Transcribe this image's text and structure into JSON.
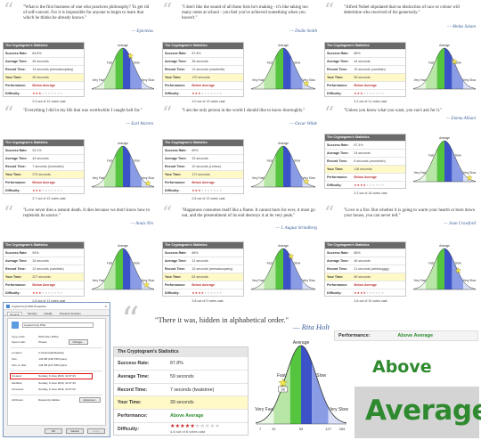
{
  "stats_header": "The Cryptogram's Statistics",
  "labels": {
    "success": "Success Rate:",
    "avg": "Average Time:",
    "record": "Record Time:",
    "your": "Your Time:",
    "perf": "Performance:",
    "diff": "Difficulty:"
  },
  "curve_labels": {
    "average": "Average",
    "fast": "Fast",
    "slow": "Slow",
    "very_fast": "Very Fast",
    "very_slow": "Very Slow"
  },
  "cards": [
    {
      "quote": "\"What is the first business of one who practices philosophy? To get rid of self-conceit. For it is impossible for anyone to begin to learn that which he thinks he already knows.\"",
      "author": "— Epictetus",
      "success": "84.8%",
      "avg": "45 seconds",
      "record": "13 seconds (beesaboopsley)",
      "your": "30 seconds",
      "perf": "Below Average",
      "rating": "2.9 out of 12 votes cast"
    },
    {
      "quote": "\"I don't like the sound of all those lists he's making - it's like taking too many notes at school - you feel you've achieved something when you haven't.\"",
      "author": "— Dodie Smith",
      "success": "87.8%",
      "avg": "36 seconds",
      "record": "13 seconds (manfredb)",
      "your": "170 seconds",
      "perf": "Below Average",
      "rating": "3.0 out of 13 votes cast"
    },
    {
      "quote": "\"Alfred Nobel stipulated that no distinction of race or colour will determine who received of his generosity.\"",
      "author": "— Abdus Salam",
      "success": "88%",
      "avg": "44 seconds",
      "record": "15 seconds (camtrish)",
      "your": "55 seconds",
      "perf": "Below Average",
      "rating": "3.3 out of 11 votes cast"
    },
    {
      "quote": "\"Everything I did in my life that was worthwhile I caught hell for.\"",
      "author": "— Earl Warren",
      "success": "93.1%",
      "avg": "44 seconds",
      "record": "7 seconds (monstrich)",
      "your": "279 seconds",
      "perf": "Below Average",
      "rating": "2.7 out of 12 votes cast"
    },
    {
      "quote": "\"I am the only person in the world I should like to know thoroughly.\"",
      "author": "— Oscar Wilde",
      "success": "89%",
      "avg": "33 seconds",
      "record": "10 seconds (Leitmo)",
      "your": "171 seconds",
      "perf": "Below Average",
      "rating": "2.8 out of 13 votes cast"
    },
    {
      "quote": "\"Unless you know what you want, you can't ask for it.\"",
      "author": "— Emma Albani",
      "success": "87.4%",
      "avg": "24 seconds",
      "record": "6 seconds (monstrich)",
      "your": "118 seconds",
      "perf": "Below Average",
      "rating": "4.3 out of 16 votes cast"
    },
    {
      "quote": "\"Love never dies a natural death. It dies because we don't know how to replenish its source.\"",
      "author": "— Anais Nin",
      "success": "94%",
      "avg": "34 seconds",
      "record": "12 seconds (camtrish)",
      "your": "227 seconds",
      "perf": "Below Average",
      "rating": "2.8 out of 11 votes cast"
    },
    {
      "quote": "\"Happiness consumes itself like a flame. It cannot burn for ever, it must go out, and the presentiment of its end destroys it at its very peak.\"",
      "author": "— J. August Strindberg",
      "success": "88%",
      "avg": "31 seconds",
      "record": "15 seconds (beesaboopsley)",
      "your": "63 seconds",
      "perf": "Below Average",
      "rating": "3.8 out of 9 votes cast"
    },
    {
      "quote": "\"Love is a fire. But whether it is going to warm your hearth or burn down your house, you can never tell.\"",
      "author": "— Joan Crawford",
      "success": "88%",
      "avg": "46 seconds",
      "record": "11 seconds (sebbdoggg)",
      "your": "89 seconds",
      "perf": "Below Average",
      "rating": "3.8 out of 10 votes cast"
    }
  ],
  "dialog": {
    "title": "cryptocrrn(1).PNG Properties",
    "tabs": [
      "General",
      "Security",
      "Details",
      "Previous Versions"
    ],
    "filename": "cryptocrrn(1).PNG",
    "change": "Change...",
    "advanced": "Advanced...",
    "rows": [
      {
        "k": "Type of file:",
        "v": "PNG File (.PNG)"
      },
      {
        "k": "Opens with:",
        "v": "Photos"
      },
      {
        "k": "Location:",
        "v": "C:\\Users\\rgh\\Desktop"
      },
      {
        "k": "Size:",
        "v": "142 KB (145,766 bytes)"
      },
      {
        "k": "Size on disk:",
        "v": "144 KB (147,456 bytes)"
      },
      {
        "k": "Created:",
        "v": "Sunday, 9 June 2019, 14:37:23"
      },
      {
        "k": "Modified:",
        "v": "Sunday, 9 June 2019, 14:37:23"
      },
      {
        "k": "Accessed:",
        "v": "Sunday, 9 June 2019, 14:37:23"
      },
      {
        "k": "Attributes:",
        "v": "Read-only  Hidden"
      }
    ],
    "ok": "OK",
    "cancel": "Cancel",
    "apply": "Apply"
  },
  "main": {
    "quote": "\"There it was, hidden in alphabetical order.\"",
    "author": "— Rita Holt",
    "success": "87.8%",
    "avg": "59 seconds",
    "record": "7 seconds (twalstree)",
    "your": "39 seconds",
    "perf": "Above Average",
    "rating": "4.8 out of 8 votes cast",
    "ticks": [
      "7",
      "31",
      "59",
      "127",
      "283"
    ],
    "marker": "39"
  },
  "zoom": {
    "perf_label": "Performance:",
    "perf_value": "Above Average",
    "word1": "Above",
    "word2": "Average"
  },
  "colors": {
    "header_gray": "#6a6a6a",
    "your_row": "#fff9c8",
    "below": "#bb3333",
    "above": "#2d8a2d",
    "quote_author": "#3a5f9a"
  }
}
